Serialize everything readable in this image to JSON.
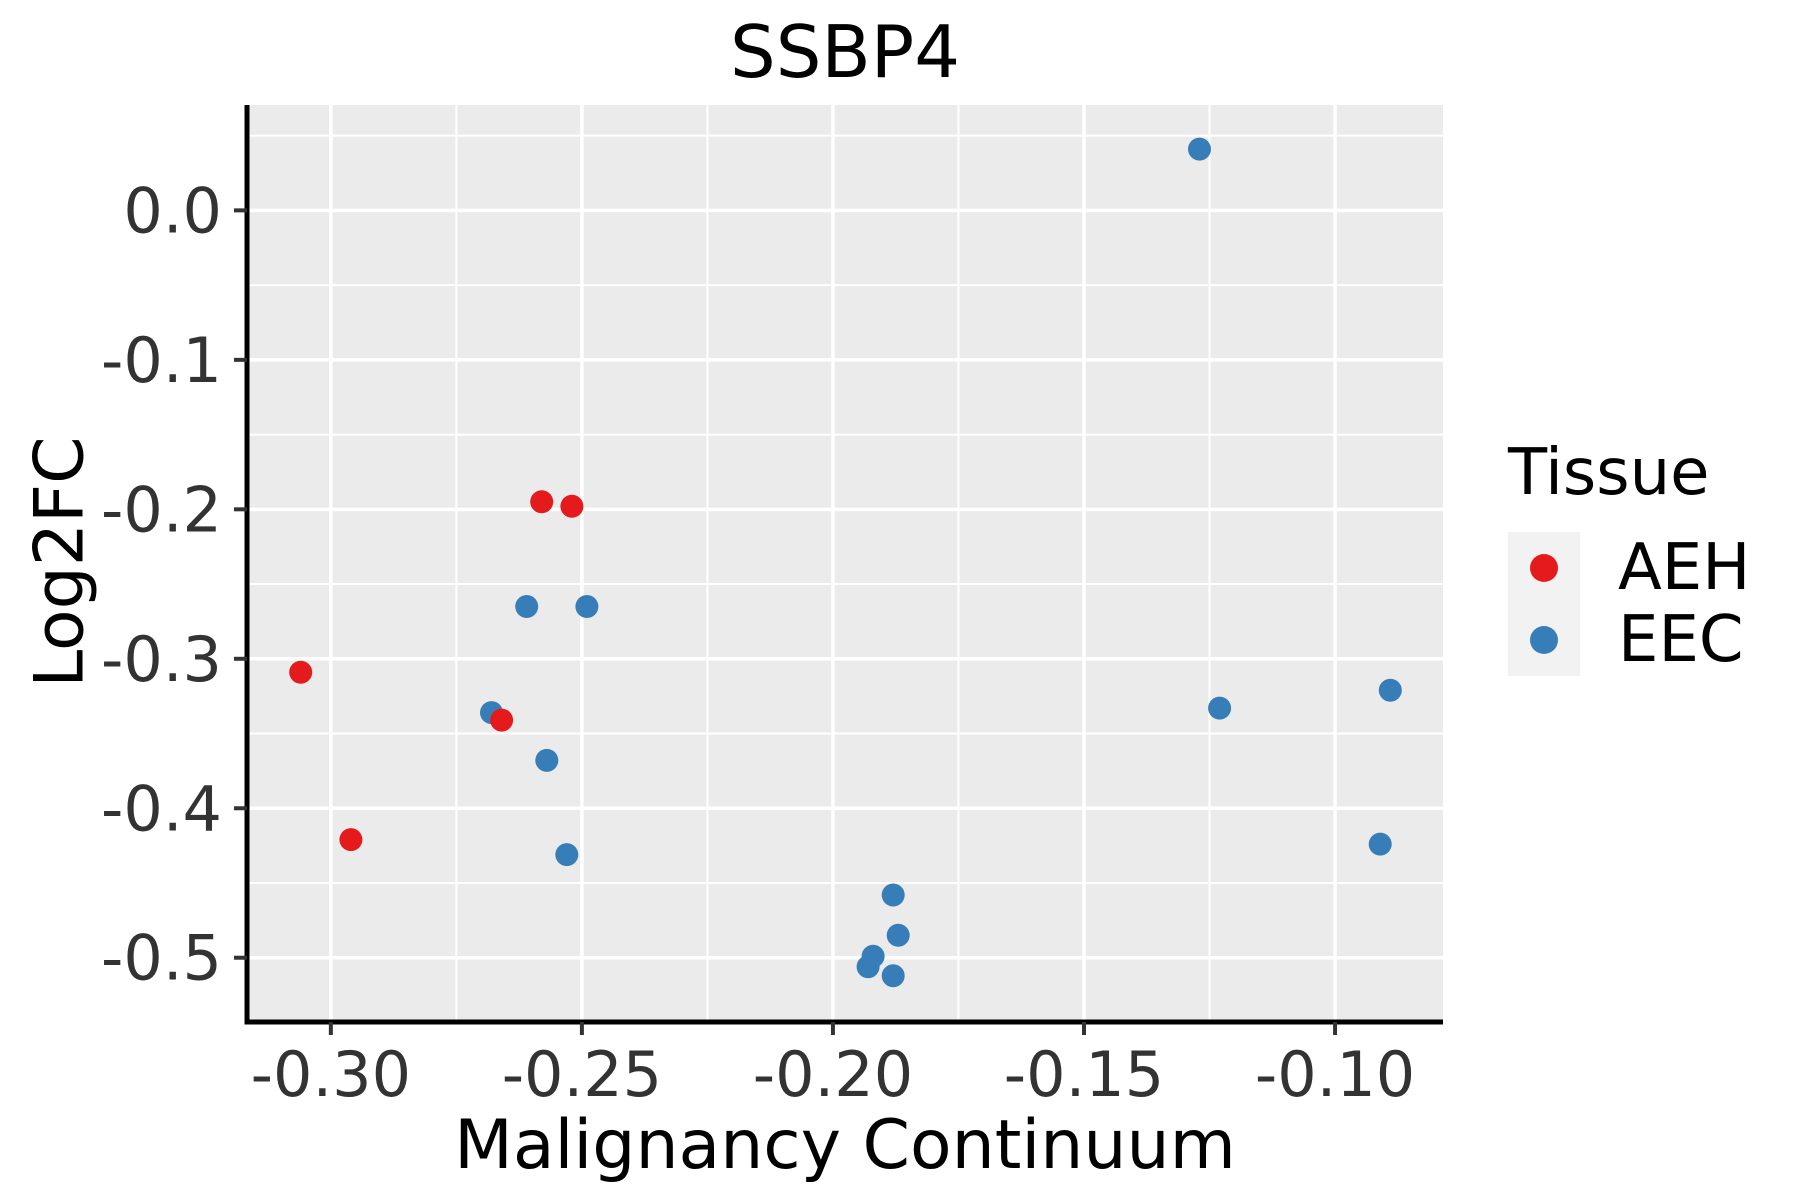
{
  "chart_data": {
    "type": "scatter",
    "title": "SSBP4",
    "xlabel": "Malignancy Continuum",
    "ylabel": "Log2FC",
    "xlim": [
      -0.3167,
      -0.0785
    ],
    "ylim": [
      -0.543,
      0.0705
    ],
    "x_ticks": {
      "values": [
        -0.3,
        -0.25,
        -0.2,
        -0.15,
        -0.1
      ],
      "labels": [
        "-0.30",
        "-0.25",
        "-0.20",
        "-0.15",
        "-0.10"
      ]
    },
    "y_ticks": {
      "values": [
        0.0,
        -0.1,
        -0.2,
        -0.3,
        -0.4,
        -0.5
      ],
      "labels": [
        "0.0",
        "-0.1",
        "-0.2",
        "-0.3",
        "-0.4",
        "-0.5"
      ]
    },
    "x_minor": [
      -0.275,
      -0.225,
      -0.175,
      -0.125
    ],
    "y_minor": [
      0.05,
      -0.05,
      -0.15,
      -0.25,
      -0.35,
      -0.45
    ],
    "grid": true,
    "panel_color": "#EBEBEB",
    "grid_color": "#FFFFFF",
    "axis_color": "#000000",
    "tick_color": "#333333",
    "legend": {
      "title": "Tissue",
      "position": "right",
      "key_fill": "#F2F2F2",
      "entries": [
        {
          "label": "AEH",
          "color": "#E41A1C"
        },
        {
          "label": "EEC",
          "color": "#377EB8"
        }
      ]
    },
    "series": [
      {
        "name": "AEH",
        "color": "#E41A1C",
        "points": [
          [
            -0.306,
            -0.309
          ],
          [
            -0.296,
            -0.421
          ],
          [
            -0.266,
            -0.341
          ],
          [
            -0.258,
            -0.195
          ],
          [
            -0.252,
            -0.198
          ]
        ]
      },
      {
        "name": "EEC",
        "color": "#377EB8",
        "points": [
          [
            -0.268,
            -0.336
          ],
          [
            -0.261,
            -0.265
          ],
          [
            -0.249,
            -0.265
          ],
          [
            -0.257,
            -0.368
          ],
          [
            -0.253,
            -0.431
          ],
          [
            -0.193,
            -0.506
          ],
          [
            -0.192,
            -0.499
          ],
          [
            -0.188,
            -0.512
          ],
          [
            -0.188,
            -0.458
          ],
          [
            -0.187,
            -0.485
          ],
          [
            -0.127,
            0.041
          ],
          [
            -0.123,
            -0.333
          ],
          [
            -0.091,
            -0.424
          ],
          [
            -0.089,
            -0.321
          ]
        ]
      }
    ]
  }
}
